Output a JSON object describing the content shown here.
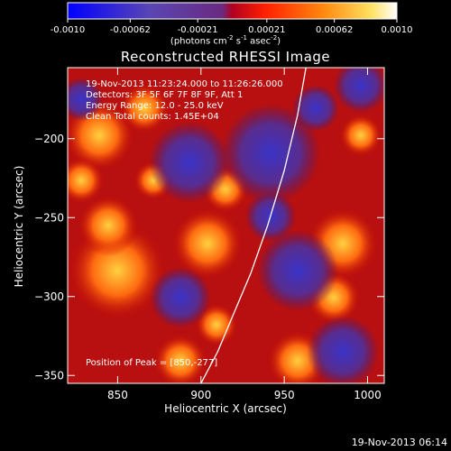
{
  "colorbar": {
    "tick_labels": [
      "-0.0010",
      "-0.00062",
      "-0.00021",
      "0.00021",
      "0.00062",
      "0.0010"
    ],
    "tick_values": [
      -0.001,
      -0.00062,
      -0.00021,
      0.00021,
      0.00062,
      0.001
    ],
    "unit_prefix": "(photons cm",
    "unit_sup1": "-2",
    "unit_mid": " s",
    "unit_sup2": "-1",
    "unit_mid2": " asec",
    "unit_sup3": "-2",
    "unit_suffix": ")",
    "colors": [
      "#0000ff",
      "#3a3ac8",
      "#6a50a0",
      "#8a3c8a",
      "#ff1010",
      "#ff7010",
      "#ffc020",
      "#ffffff"
    ]
  },
  "chart_data": {
    "type": "heatmap",
    "title": "Reconstructed RHESSI Image",
    "xlabel": "Heliocentric X (arcsec)",
    "ylabel": "Heliocentric Y (arcsec)",
    "xlim": [
      820,
      1010
    ],
    "ylim": [
      -355,
      -155
    ],
    "x_ticks": [
      850,
      900,
      950,
      1000
    ],
    "y_ticks": [
      -350,
      -300,
      -250,
      -200
    ],
    "x_tick_labels": [
      "850",
      "900",
      "950",
      "1000"
    ],
    "y_tick_labels": [
      "−350",
      "−300",
      "−250",
      "−200"
    ],
    "limb_curve": [
      [
        900,
        -355
      ],
      [
        910,
        -335
      ],
      [
        920,
        -310
      ],
      [
        930,
        -285
      ],
      [
        940,
        -255
      ],
      [
        950,
        -220
      ],
      [
        958,
        -185
      ],
      [
        963,
        -155
      ]
    ],
    "peak": [
      850,
      -277
    ],
    "annotations": [
      "19-Nov-2013 11:23:24.000 to 11:26:26.000",
      "Detectors: 3F 5F 6F 7F 8F 9F, Att 1",
      "Energy Range: 12.0 - 25.0 keV",
      "Clean    Total counts: 1.45E+04"
    ],
    "peak_label": "Position of Peak = [850,-277]"
  },
  "footer": {
    "date_stamp": "19-Nov-2013 06:14"
  }
}
